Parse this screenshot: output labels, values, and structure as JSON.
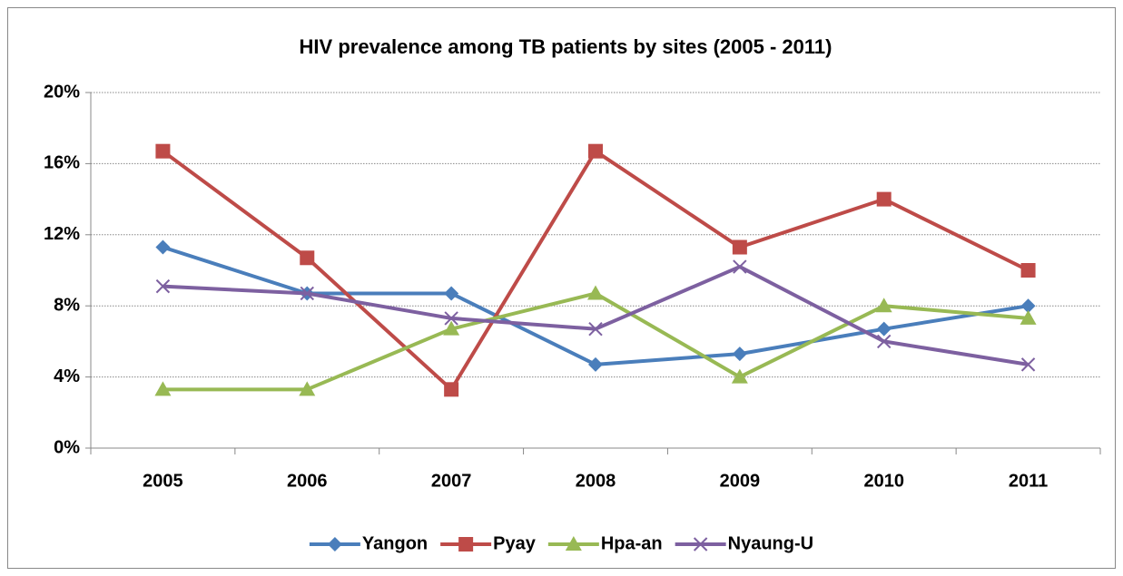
{
  "chart_data": {
    "type": "line",
    "title": "HIV prevalence among TB patients by sites (2005 - 2011)",
    "categories": [
      "2005",
      "2006",
      "2007",
      "2008",
      "2009",
      "2010",
      "2011"
    ],
    "series": [
      {
        "name": "Yangon",
        "color": "#4a7ebb",
        "marker": "diamond",
        "values": [
          11.3,
          8.7,
          8.7,
          4.7,
          5.3,
          6.7,
          8.0
        ]
      },
      {
        "name": "Pyay",
        "color": "#be4b48",
        "marker": "square",
        "values": [
          16.7,
          10.7,
          3.3,
          16.7,
          11.3,
          14.0,
          10.0
        ]
      },
      {
        "name": "Hpa-an",
        "color": "#98b954",
        "marker": "triangle",
        "values": [
          3.3,
          3.3,
          6.7,
          8.7,
          4.0,
          8.0,
          7.3
        ]
      },
      {
        "name": "Nyaung-U",
        "color": "#7d60a0",
        "marker": "x",
        "values": [
          9.1,
          8.7,
          7.3,
          6.7,
          10.2,
          6.0,
          4.7
        ]
      }
    ],
    "ylim": [
      0,
      20
    ],
    "yticks": [
      {
        "value": 0,
        "label": "0%"
      },
      {
        "value": 4,
        "label": "4%"
      },
      {
        "value": 8,
        "label": "8%"
      },
      {
        "value": 12,
        "label": "12%"
      },
      {
        "value": 16,
        "label": "16%"
      },
      {
        "value": 20,
        "label": "20%"
      }
    ],
    "grid": true,
    "legend": "bottom"
  }
}
